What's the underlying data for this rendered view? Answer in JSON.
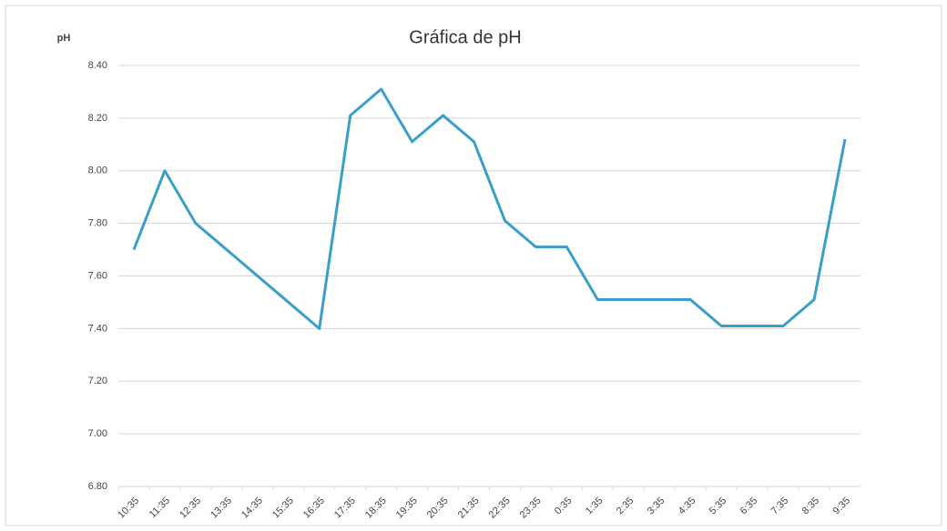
{
  "chart_data": {
    "type": "line",
    "title": "Gráfica de pH",
    "y_label": "pH",
    "categories": [
      "10:35",
      "11:35",
      "12:35",
      "13:35",
      "14:35",
      "15:35",
      "16:35",
      "17:35",
      "18:35",
      "19:35",
      "20:35",
      "21:35",
      "22:35",
      "23:35",
      "0:35",
      "1:35",
      "2:35",
      "3:35",
      "4:35",
      "5:35",
      "6:35",
      "7:35",
      "8:35",
      "9:35"
    ],
    "series": [
      {
        "name": "pH",
        "color": "#3a9fc8",
        "values": [
          7.7,
          8.0,
          7.8,
          7.7,
          7.6,
          7.5,
          7.4,
          8.21,
          8.31,
          8.11,
          8.21,
          8.11,
          7.81,
          7.71,
          7.71,
          7.51,
          7.51,
          7.51,
          7.51,
          7.41,
          7.41,
          7.41,
          7.51,
          8.12
        ]
      }
    ],
    "ylim": [
      6.8,
      8.4
    ],
    "yticks": [
      {
        "value": 6.8,
        "label": "6.80"
      },
      {
        "value": 7.0,
        "label": "7.00"
      },
      {
        "value": 7.2,
        "label": "7.20"
      },
      {
        "value": 7.4,
        "label": "7.40"
      },
      {
        "value": 7.6,
        "label": "7.60"
      },
      {
        "value": 7.8,
        "label": "7.80"
      },
      {
        "value": 8.0,
        "label": "8.00"
      },
      {
        "value": 8.2,
        "label": "8.20"
      },
      {
        "value": 8.4,
        "label": "8.40"
      }
    ],
    "grid": true
  }
}
